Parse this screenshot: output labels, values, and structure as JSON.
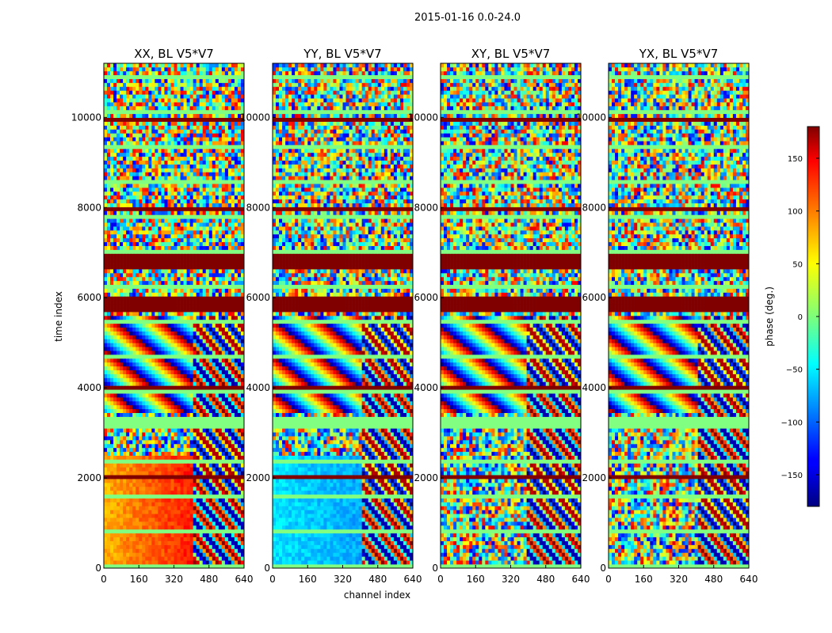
{
  "chart_data": {
    "type": "heatmap",
    "suptitle": "2015-01-16 0.0-24.0",
    "xlabel": "channel index",
    "ylabel": "time index",
    "colorbar_label": "phase (deg.)",
    "colormap": "jet",
    "xlim": [
      0,
      640
    ],
    "ylim": [
      0,
      11200
    ],
    "x_ticks": [
      "0",
      "160",
      "320",
      "480",
      "640"
    ],
    "y_ticks": [
      "0",
      "2000",
      "4000",
      "6000",
      "8000",
      "10000"
    ],
    "y_tick_values": [
      0,
      2000,
      4000,
      6000,
      8000,
      10000
    ],
    "clim": [
      -180,
      180
    ],
    "cb_ticks": [
      "150",
      "100",
      "50",
      "0",
      "−50",
      "−100",
      "−150"
    ],
    "cb_tick_values": [
      150,
      100,
      50,
      0,
      -50,
      -100,
      -150
    ],
    "panels": [
      {
        "title": "XX, BL V5*V7",
        "signal_channel_limit": 400
      },
      {
        "title": "YY, BL V5*V7",
        "signal_channel_limit": 400
      },
      {
        "title": "XY, BL V5*V7",
        "signal_channel_limit": 380
      },
      {
        "title": "YX, BL V5*V7",
        "signal_channel_limit": 400
      }
    ],
    "colors": {
      "zero_phase": "#7dff7a",
      "max_phase": "#800000",
      "min_phase": "#00007f"
    }
  }
}
